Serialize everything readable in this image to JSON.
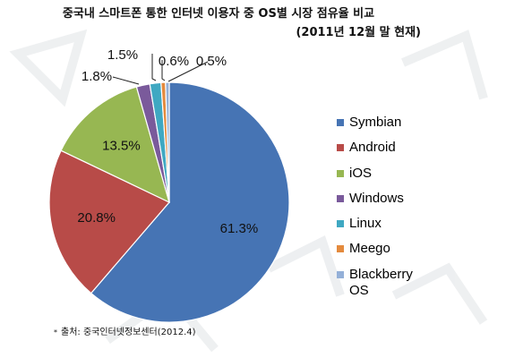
{
  "header": {
    "title": "중국내 스마트폰 통한 인터넷 이용자 중 OS별 시장 점유율 비교",
    "subtitle": "(2011년 12월 말 현재)"
  },
  "footer": {
    "bullet": "*",
    "source": "출처: 중국인터넷정보센터(2012.4)"
  },
  "chart_data": {
    "type": "pie",
    "title": "중국내 스마트폰 통한 인터넷 이용자 중 OS별 시장 점유율 비교",
    "subtitle": "(2011년 12월 말 현재)",
    "categories": [
      "Symbian",
      "Android",
      "iOS",
      "Windows",
      "Linux",
      "Meego",
      "Blackberry OS"
    ],
    "values": [
      61.3,
      20.8,
      13.5,
      1.8,
      1.5,
      0.6,
      0.5
    ],
    "data_labels": [
      "61.3%",
      "20.8%",
      "13.5%",
      "1.8%",
      "1.5%",
      "0.6%",
      "0.5%"
    ],
    "colors": [
      "#4674b4",
      "#b84b48",
      "#97b752",
      "#7a5a9b",
      "#3fa8c2",
      "#e48a3d",
      "#94b0d8"
    ],
    "legend": {
      "position": "right",
      "items": [
        "Symbian",
        "Android",
        "iOS",
        "Windows",
        "Linux",
        "Meego",
        "Blackberry OS"
      ]
    }
  }
}
